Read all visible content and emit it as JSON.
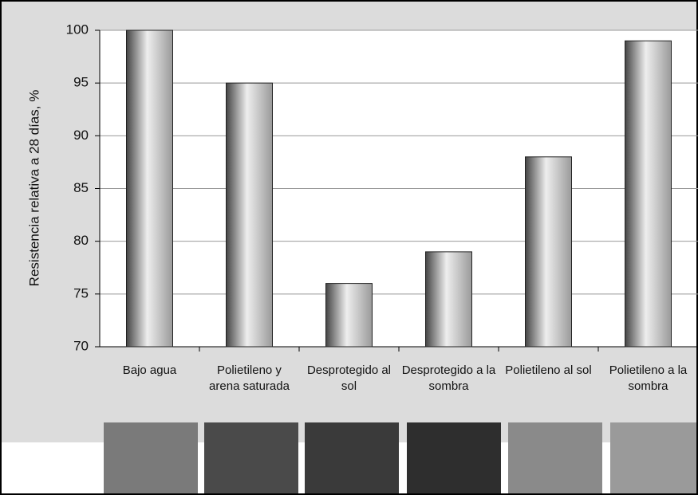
{
  "chart_data": {
    "type": "bar",
    "y_label": "Resistencia relativa a 28 días, %",
    "categories": [
      "Bajo agua",
      "Polietileno y arena saturada",
      "Desprotegido al sol",
      "Desprotegido a la sombra",
      "Polietileno al sol",
      "Polietileno a la sombra"
    ],
    "values": [
      100,
      95,
      76,
      79,
      88,
      99
    ],
    "color": "#9a9a9a",
    "ylim": [
      70,
      100
    ],
    "yticks": [
      70,
      75,
      80,
      85,
      90,
      95,
      100
    ],
    "grid": true
  }
}
